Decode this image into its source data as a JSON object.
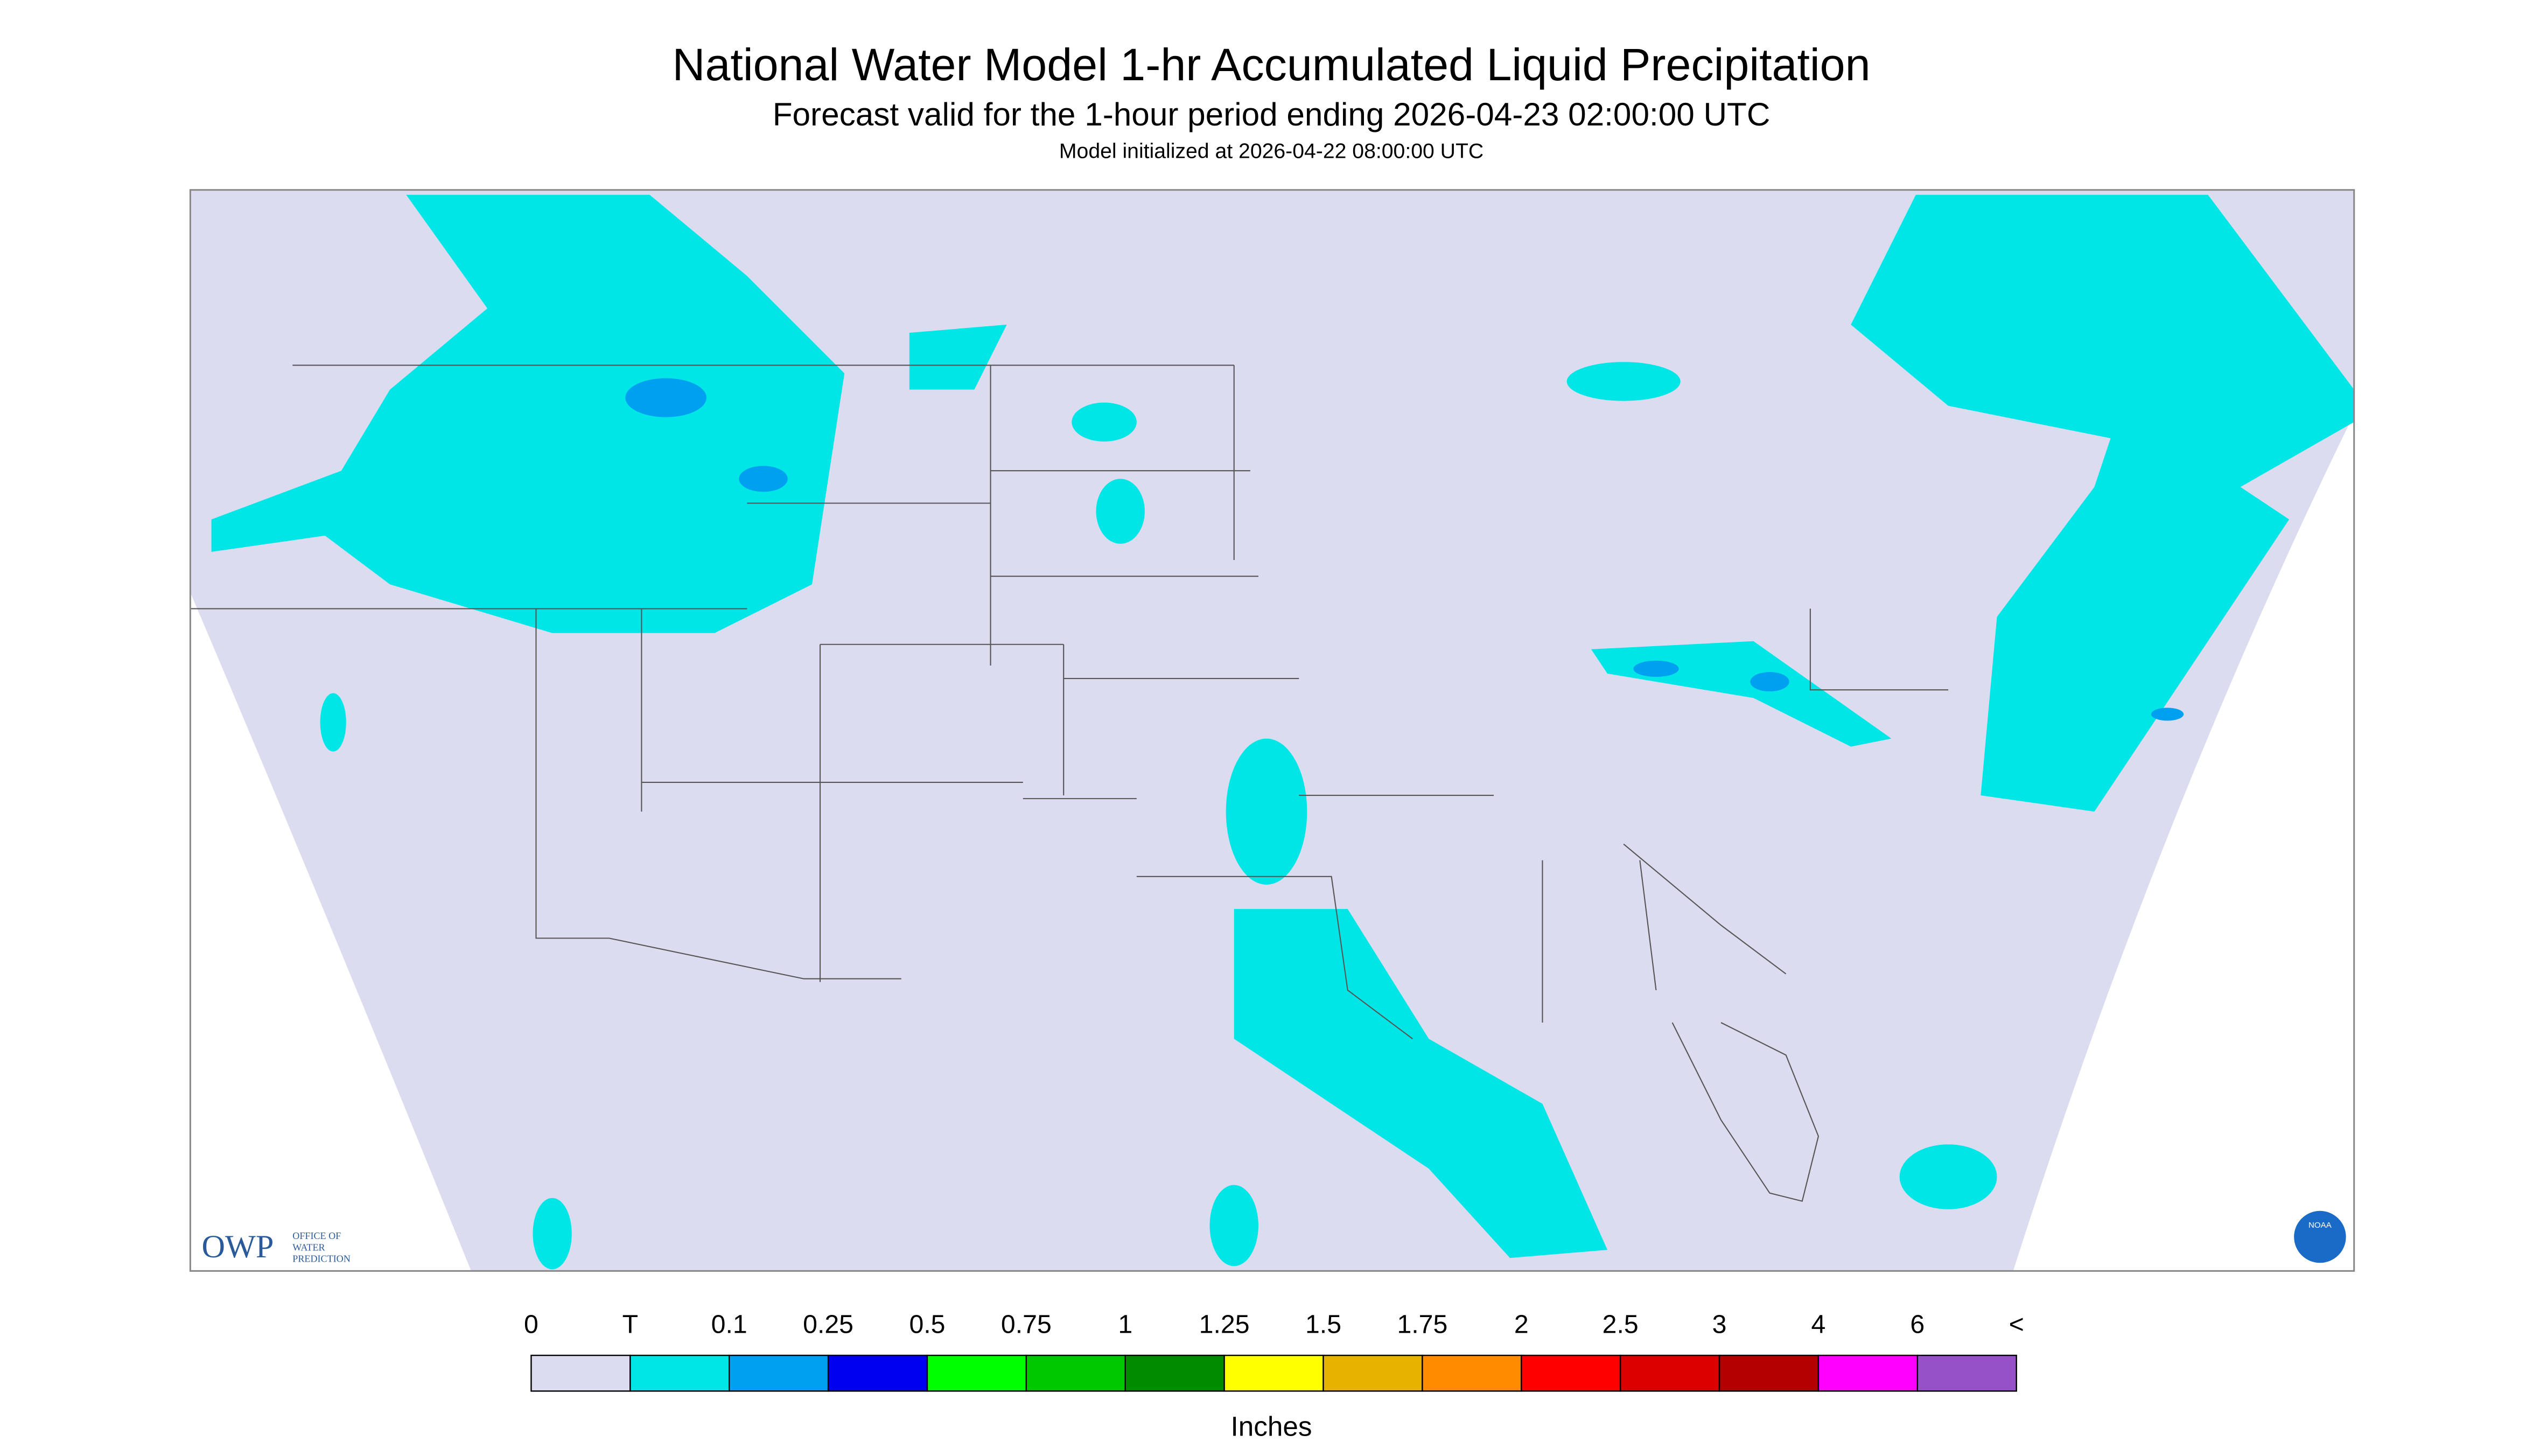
{
  "header": {
    "title": "National Water Model 1-hr Accumulated Liquid Precipitation",
    "subtitle": "Forecast valid for the 1-hour period ending 2026-04-23 02:00:00 UTC",
    "note": "Model initialized at 2026-04-22 08:00:00 UTC"
  },
  "logos": {
    "owp": "OWP",
    "owp_lines": [
      "OFFICE OF",
      "WATER",
      "PREDICTION"
    ],
    "noaa": "NOAA"
  },
  "legend": {
    "labels": [
      "0",
      "T",
      "0.1",
      "0.25",
      "0.5",
      "0.75",
      "1",
      "1.25",
      "1.5",
      "1.75",
      "2",
      "2.5",
      "3",
      "4",
      "6",
      "<"
    ],
    "colors": [
      "#dcdcf0",
      "#00e6e6",
      "#00a0f0",
      "#0000f0",
      "#00ff00",
      "#00c800",
      "#008c00",
      "#ffff00",
      "#e6b400",
      "#ff8c00",
      "#ff0000",
      "#dc0000",
      "#b40000",
      "#ff00ff",
      "#9650c8"
    ],
    "unit": "Inches"
  }
}
